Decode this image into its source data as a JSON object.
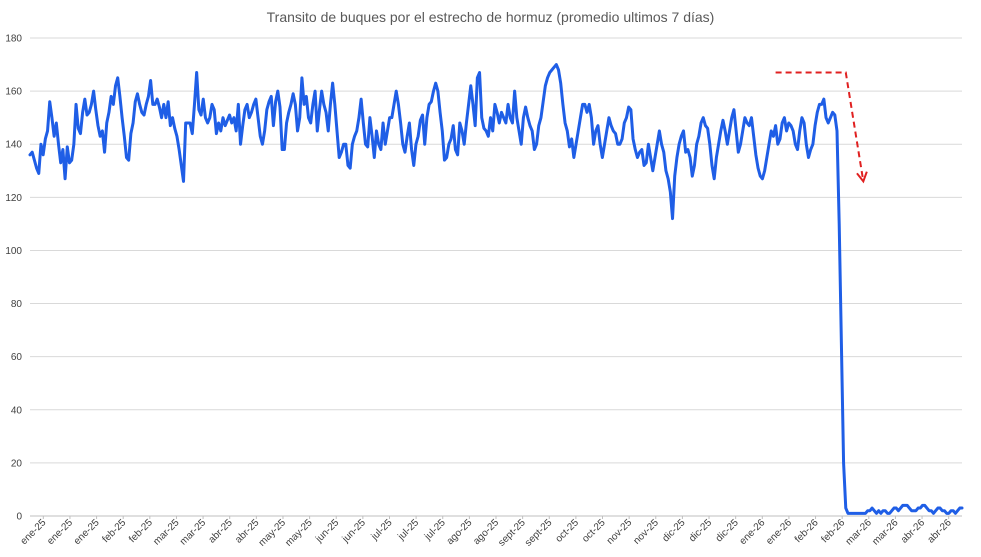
{
  "chart_data": {
    "type": "line",
    "title": "Transito de buques por el estrecho de hormuz (promedio ultimos 7 días)",
    "xlabel": "",
    "ylabel": "",
    "ylim": [
      0,
      180
    ],
    "yticks": [
      0,
      20,
      40,
      60,
      80,
      100,
      120,
      140,
      160,
      180
    ],
    "grid": true,
    "legend": "none",
    "x_tick_labels": [
      "ene-25",
      "ene-25",
      "ene-25",
      "feb-25",
      "feb-25",
      "mar-25",
      "mar-25",
      "abr-25",
      "abr-25",
      "may-25",
      "may-25",
      "jun-25",
      "jun-25",
      "jul-25",
      "jul-25",
      "jul-25",
      "ago-25",
      "ago-25",
      "sept-25",
      "sept-25",
      "oct-25",
      "oct-25",
      "nov-25",
      "nov-25",
      "dic-25",
      "dic-25",
      "dic-25",
      "ene-26",
      "ene-26",
      "feb-26",
      "feb-26",
      "mar-26",
      "mar-26",
      "abr-26",
      "abr-26"
    ],
    "series": [
      {
        "color": "#1f5ee6",
        "values": [
          136,
          137,
          134,
          131,
          129,
          140,
          136,
          142,
          145,
          156,
          150,
          143,
          148,
          140,
          133,
          138,
          127,
          139,
          133,
          134,
          140,
          155,
          146,
          144,
          152,
          157,
          151,
          152,
          155,
          160,
          153,
          147,
          143,
          145,
          137,
          148,
          152,
          158,
          155,
          162,
          165,
          158,
          150,
          143,
          135,
          134,
          144,
          148,
          156,
          159,
          155,
          152,
          151,
          155,
          158,
          164,
          155,
          155,
          157,
          154,
          150,
          155,
          150,
          156,
          147,
          150,
          146,
          143,
          138,
          132,
          126,
          148,
          148,
          148,
          144,
          155,
          167,
          153,
          151,
          157,
          150,
          148,
          150,
          155,
          153,
          144,
          148,
          145,
          150,
          147,
          149,
          151,
          148,
          150,
          145,
          155,
          140,
          147,
          153,
          155,
          150,
          152,
          155,
          157,
          150,
          143,
          140,
          145,
          153,
          156,
          158,
          147,
          156,
          160,
          154,
          138,
          138,
          148,
          152,
          155,
          159,
          155,
          145,
          150,
          165,
          155,
          158,
          150,
          148,
          155,
          160,
          145,
          153,
          160,
          155,
          152,
          145,
          155,
          163,
          155,
          145,
          135,
          137,
          140,
          140,
          132,
          131,
          140,
          143,
          145,
          150,
          157,
          148,
          140,
          139,
          150,
          143,
          135,
          145,
          140,
          138,
          148,
          140,
          145,
          150,
          150,
          155,
          160,
          155,
          148,
          140,
          137,
          143,
          148,
          138,
          132,
          140,
          143,
          149,
          151,
          140,
          150,
          155,
          156,
          160,
          163,
          160,
          152,
          145,
          134,
          135,
          140,
          142,
          147,
          138,
          136,
          148,
          145,
          140,
          148,
          155,
          162,
          155,
          147,
          165,
          167,
          150,
          146,
          145,
          143,
          150,
          145,
          155,
          152,
          148,
          152,
          150,
          148,
          155,
          150,
          148,
          160,
          150,
          145,
          140,
          150,
          154,
          150,
          147,
          145,
          138,
          140,
          147,
          150,
          156,
          162,
          165,
          167,
          168,
          169,
          170,
          168,
          163,
          155,
          148,
          145,
          139,
          142,
          135,
          140,
          145,
          150,
          155,
          155,
          152,
          155,
          150,
          140,
          145,
          147,
          140,
          135,
          140,
          145,
          150,
          147,
          145,
          144,
          140,
          140,
          142,
          148,
          150,
          154,
          153,
          142,
          138,
          135,
          137,
          138,
          132,
          133,
          140,
          135,
          130,
          135,
          140,
          145,
          140,
          137,
          130,
          127,
          122,
          112,
          128,
          135,
          140,
          143,
          145,
          137,
          138,
          135,
          128,
          132,
          140,
          143,
          148,
          150,
          147,
          146,
          140,
          132,
          127,
          135,
          140,
          145,
          149,
          145,
          140,
          145,
          150,
          153,
          145,
          137,
          140,
          145,
          150,
          148,
          147,
          150,
          143,
          136,
          131,
          128,
          127,
          130,
          135,
          140,
          145,
          143,
          147,
          140,
          142,
          148,
          150,
          145,
          148,
          147,
          145,
          140,
          138,
          145,
          150,
          148,
          140,
          135,
          138,
          140,
          147,
          152,
          155,
          155,
          157,
          150,
          148,
          150,
          152,
          151,
          145,
          110,
          65,
          20,
          3,
          1,
          1,
          1,
          1,
          1,
          1,
          1,
          1,
          1,
          2,
          2,
          3,
          2,
          1,
          2,
          1,
          2,
          2,
          1,
          1,
          2,
          3,
          3,
          2,
          3,
          4,
          4,
          4,
          3,
          2,
          2,
          2,
          3,
          3,
          4,
          4,
          3,
          2,
          2,
          1,
          2,
          3,
          3,
          2,
          2,
          1,
          1,
          2,
          2,
          1,
          2,
          3,
          3
        ]
      }
    ],
    "annotations": [
      {
        "type": "dashed-arrow",
        "color": "#e02020",
        "from_index": 340,
        "corner_index": 372,
        "to_index": 380,
        "y_flat": 167,
        "y_end": 126
      }
    ]
  }
}
